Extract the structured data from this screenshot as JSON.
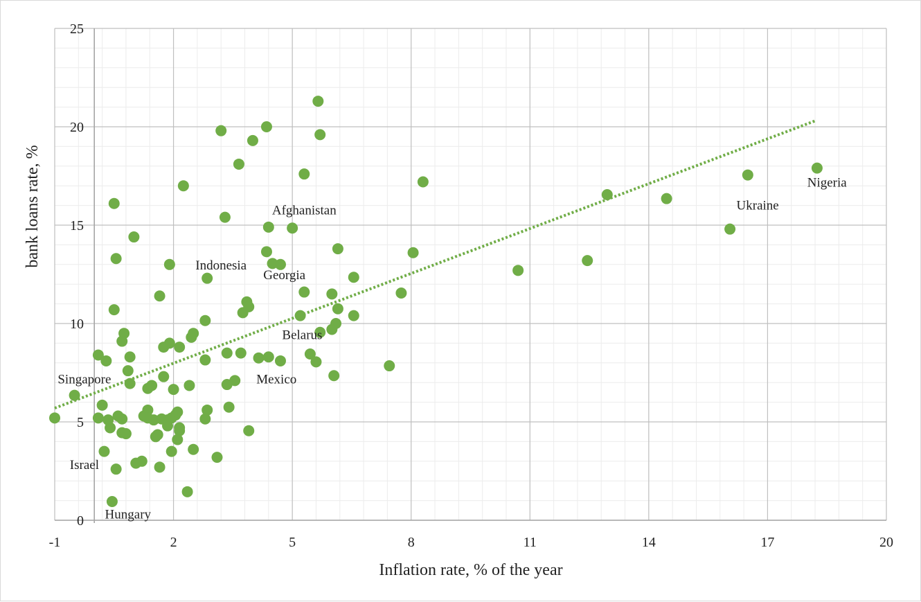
{
  "chart_data": {
    "type": "scatter",
    "xlabel": "Inflation rate, % of the year",
    "ylabel": "bank loans rate, %",
    "xlim": [
      -1,
      20
    ],
    "ylim": [
      0,
      25
    ],
    "x_ticks": [
      -1,
      2,
      5,
      8,
      11,
      14,
      17,
      20
    ],
    "y_ticks": [
      0,
      5,
      10,
      15,
      20,
      25
    ],
    "x_tick_labels": [
      "-1",
      "2",
      "5",
      "8",
      "11",
      "14",
      "17",
      "20"
    ],
    "y_tick_labels": [
      "0",
      "5",
      "10",
      "15",
      "20",
      "25"
    ],
    "grid": true,
    "legend": "none",
    "marker_color": "#70ad47",
    "trendline": {
      "style": "dotted",
      "color": "#70ad47",
      "x": [
        -1,
        18.2
      ],
      "y": [
        5.7,
        20.3
      ]
    },
    "points": [
      [
        -1.0,
        5.2
      ],
      [
        -0.5,
        6.35
      ],
      [
        0.1,
        8.4
      ],
      [
        0.3,
        8.1
      ],
      [
        0.1,
        5.2
      ],
      [
        0.2,
        5.85
      ],
      [
        0.35,
        5.1
      ],
      [
        0.4,
        4.7
      ],
      [
        0.25,
        3.5
      ],
      [
        0.55,
        2.6
      ],
      [
        0.45,
        0.95
      ],
      [
        0.5,
        16.1
      ],
      [
        0.55,
        13.3
      ],
      [
        0.5,
        10.7
      ],
      [
        0.75,
        9.5
      ],
      [
        0.7,
        9.1
      ],
      [
        0.9,
        8.3
      ],
      [
        0.85,
        7.6
      ],
      [
        0.9,
        6.95
      ],
      [
        0.6,
        5.3
      ],
      [
        0.7,
        5.15
      ],
      [
        0.7,
        4.45
      ],
      [
        0.8,
        4.4
      ],
      [
        1.0,
        14.4
      ],
      [
        1.05,
        2.9
      ],
      [
        1.2,
        3.0
      ],
      [
        1.25,
        5.3
      ],
      [
        1.35,
        5.6
      ],
      [
        1.35,
        5.2
      ],
      [
        1.35,
        6.7
      ],
      [
        1.45,
        6.85
      ],
      [
        1.5,
        5.1
      ],
      [
        1.55,
        4.25
      ],
      [
        1.6,
        4.35
      ],
      [
        1.65,
        2.7
      ],
      [
        1.65,
        11.4
      ],
      [
        1.75,
        8.8
      ],
      [
        1.75,
        7.3
      ],
      [
        1.7,
        5.15
      ],
      [
        1.85,
        5.1
      ],
      [
        1.85,
        4.8
      ],
      [
        1.9,
        9.0
      ],
      [
        1.9,
        13.0
      ],
      [
        1.95,
        3.5
      ],
      [
        1.95,
        5.2
      ],
      [
        2.0,
        6.65
      ],
      [
        2.05,
        5.35
      ],
      [
        2.1,
        5.5
      ],
      [
        2.1,
        4.1
      ],
      [
        2.15,
        4.7
      ],
      [
        2.15,
        4.55
      ],
      [
        2.15,
        8.8
      ],
      [
        2.25,
        17.0
      ],
      [
        2.35,
        1.45
      ],
      [
        2.4,
        6.85
      ],
      [
        2.45,
        9.3
      ],
      [
        2.5,
        9.5
      ],
      [
        2.5,
        3.6
      ],
      [
        2.8,
        10.15
      ],
      [
        2.8,
        8.15
      ],
      [
        2.8,
        5.15
      ],
      [
        2.85,
        5.6
      ],
      [
        2.85,
        12.3
      ],
      [
        3.1,
        3.2
      ],
      [
        3.2,
        19.8
      ],
      [
        3.3,
        15.4
      ],
      [
        3.35,
        8.5
      ],
      [
        3.35,
        6.9
      ],
      [
        3.4,
        5.75
      ],
      [
        3.55,
        7.1
      ],
      [
        3.65,
        18.1
      ],
      [
        3.7,
        8.5
      ],
      [
        3.75,
        10.55
      ],
      [
        3.85,
        11.1
      ],
      [
        3.9,
        10.85
      ],
      [
        3.9,
        4.55
      ],
      [
        4.0,
        19.3
      ],
      [
        4.15,
        8.25
      ],
      [
        4.35,
        13.65
      ],
      [
        4.35,
        20.0
      ],
      [
        4.4,
        8.3
      ],
      [
        4.4,
        14.9
      ],
      [
        4.5,
        13.05
      ],
      [
        4.7,
        13.0
      ],
      [
        4.7,
        8.1
      ],
      [
        5.0,
        14.85
      ],
      [
        5.2,
        10.4
      ],
      [
        5.3,
        17.6
      ],
      [
        5.3,
        11.6
      ],
      [
        5.45,
        8.45
      ],
      [
        5.6,
        8.05
      ],
      [
        5.65,
        21.3
      ],
      [
        5.7,
        19.6
      ],
      [
        5.7,
        9.55
      ],
      [
        6.0,
        11.5
      ],
      [
        6.0,
        9.7
      ],
      [
        6.05,
        7.35
      ],
      [
        6.1,
        10.0
      ],
      [
        6.15,
        10.75
      ],
      [
        6.15,
        13.8
      ],
      [
        6.55,
        12.35
      ],
      [
        6.55,
        10.4
      ],
      [
        7.45,
        7.85
      ],
      [
        7.75,
        11.55
      ],
      [
        8.05,
        13.6
      ],
      [
        8.3,
        17.2
      ],
      [
        10.7,
        12.7
      ],
      [
        12.45,
        13.2
      ],
      [
        12.95,
        16.55
      ],
      [
        14.45,
        16.35
      ],
      [
        16.05,
        14.8
      ],
      [
        16.5,
        17.55
      ],
      [
        18.25,
        17.9
      ]
    ],
    "annotations": [
      {
        "text": "Afghanistan",
        "x": 5.3,
        "y": 15.55
      },
      {
        "text": "Indonesia",
        "x": 3.2,
        "y": 12.75
      },
      {
        "text": "Georgia",
        "x": 4.8,
        "y": 12.25
      },
      {
        "text": "Belarus",
        "x": 5.25,
        "y": 9.2
      },
      {
        "text": "Mexico",
        "x": 4.6,
        "y": 6.95
      },
      {
        "text": "Singapore",
        "x": -0.25,
        "y": 6.95
      },
      {
        "text": "Israel",
        "x": -0.25,
        "y": 2.6
      },
      {
        "text": "Hungary",
        "x": 0.85,
        "y": 0.08
      },
      {
        "text": "Ukraine",
        "x": 16.75,
        "y": 15.8
      },
      {
        "text": "Nigeria",
        "x": 18.5,
        "y": 16.95
      }
    ]
  }
}
